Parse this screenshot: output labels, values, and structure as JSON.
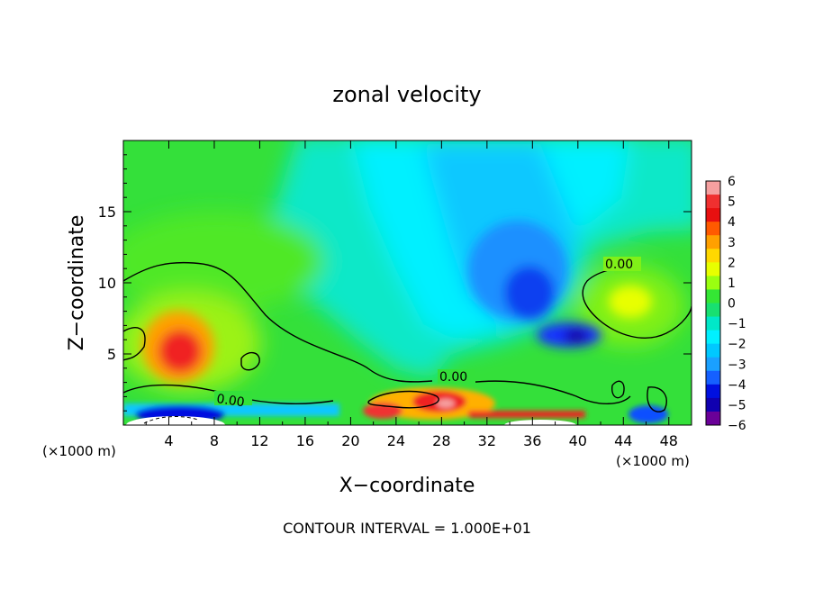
{
  "chart_data": {
    "type": "heatmap",
    "title": "zonal velocity",
    "xlabel": "X−coordinate",
    "ylabel": "Z−coordinate",
    "x_unit_left": "(×1000 m)",
    "x_unit_right": "(×1000 m)",
    "footer": "CONTOUR INTERVAL = 1.000E+01",
    "xlim": [
      0,
      50
    ],
    "ylim": [
      0,
      20
    ],
    "x_ticks": [
      "4",
      "8",
      "12",
      "16",
      "20",
      "24",
      "28",
      "32",
      "36",
      "40",
      "44",
      "48"
    ],
    "y_ticks": [
      "5",
      "10",
      "15"
    ],
    "contour_label": "0.00",
    "colorbar": {
      "labels": [
        "6",
        "5",
        "4",
        "3",
        "2",
        "1",
        "0",
        "−1",
        "−2",
        "−3",
        "−4",
        "−5",
        "−6"
      ],
      "colors": [
        "#f5a0a0",
        "#f03030",
        "#e81010",
        "#ff5a00",
        "#ffa000",
        "#ffd800",
        "#e8ff00",
        "#9aff10",
        "#34e634",
        "#18e070",
        "#00e8c8",
        "#00f0ff",
        "#00c8ff",
        "#1aa0ff",
        "#1560ff",
        "#0010e0",
        "#1000b0",
        "#6a0098"
      ]
    }
  }
}
